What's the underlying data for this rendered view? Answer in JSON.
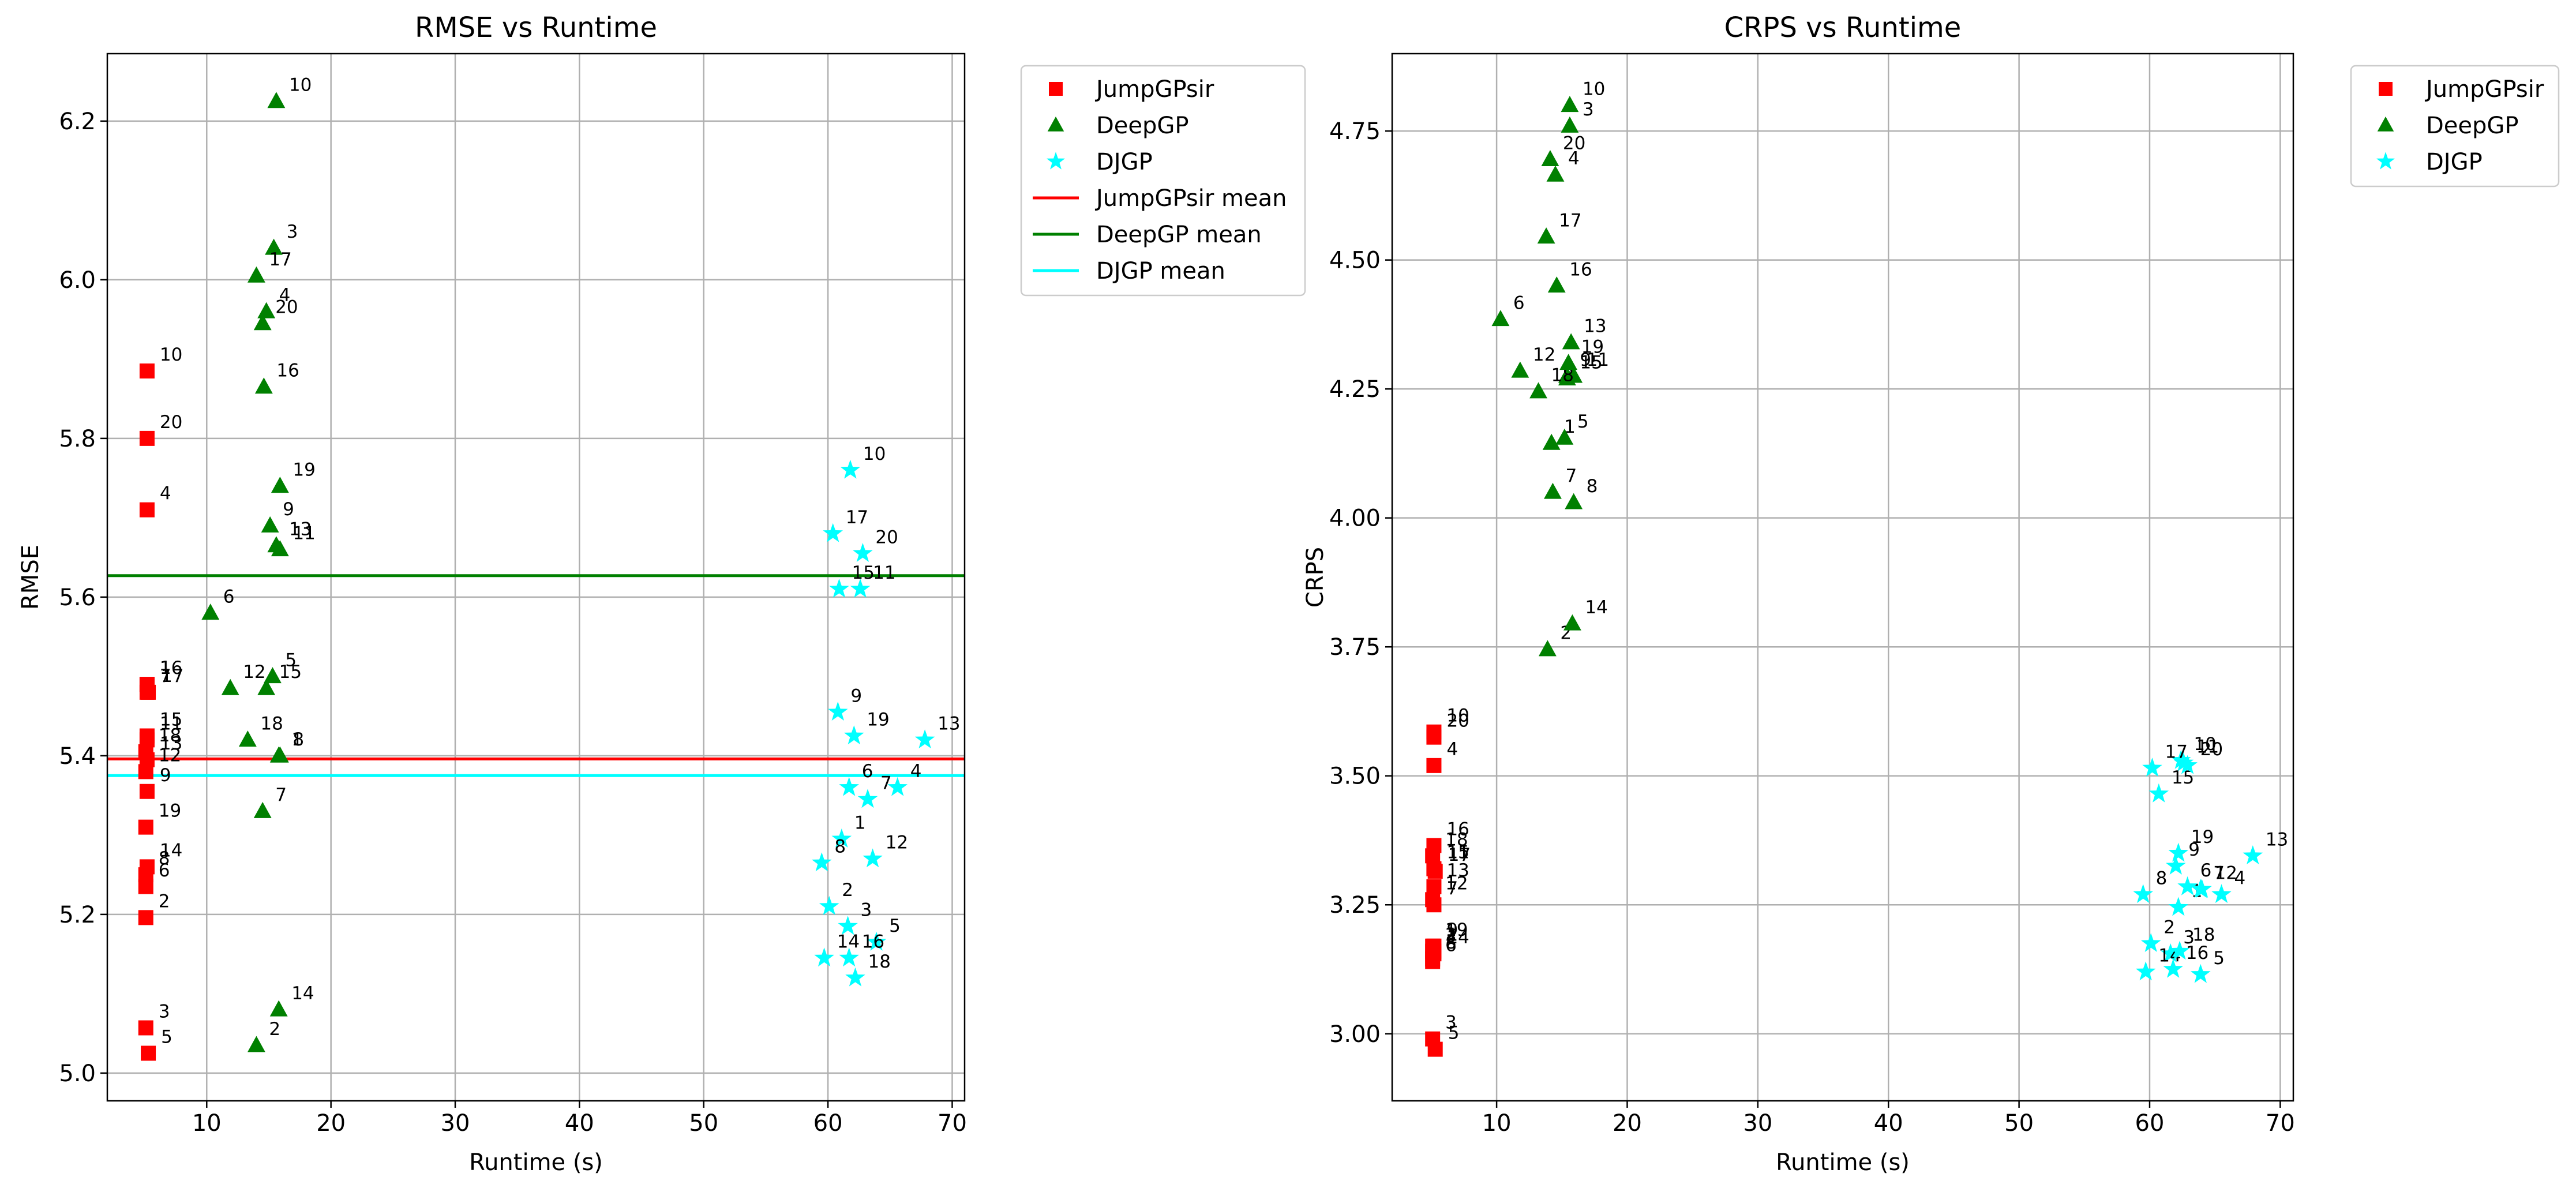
{
  "chart_data": [
    {
      "type": "scatter",
      "title": "RMSE vs Runtime",
      "xlabel": "Runtime (s)",
      "ylabel": "RMSE",
      "xlim": [
        2,
        71
      ],
      "ylim": [
        4.965,
        6.285
      ],
      "xticks": [
        10,
        20,
        30,
        40,
        50,
        60,
        70
      ],
      "yticks": [
        5.0,
        5.2,
        5.4,
        5.6,
        5.8,
        6.0,
        6.2
      ],
      "ytick_decimals": 1,
      "grid": true,
      "legend_position": "outside upper right",
      "legend": [
        "JumpGPsir",
        "DeepGP",
        "DJGP",
        "JumpGPsir mean",
        "DeepGP mean",
        "DJGP mean"
      ],
      "series": [
        {
          "name": "JumpGPsir",
          "marker": "square",
          "color": "#ff0000",
          "labels": [
            "1",
            "2",
            "3",
            "4",
            "5",
            "6",
            "7",
            "8",
            "9",
            "10",
            "11",
            "12",
            "13",
            "14",
            "15",
            "16",
            "17",
            "18",
            "19",
            "20"
          ],
          "x": [
            5.2,
            5.1,
            5.1,
            5.2,
            5.3,
            5.1,
            5.2,
            5.1,
            5.2,
            5.2,
            5.2,
            5.1,
            5.2,
            5.2,
            5.2,
            5.2,
            5.3,
            5.1,
            5.1,
            5.2
          ],
          "y": [
            5.49,
            5.196,
            5.057,
            5.71,
            5.025,
            5.235,
            5.48,
            5.25,
            5.355,
            5.885,
            5.42,
            5.38,
            5.395,
            5.26,
            5.425,
            5.49,
            5.48,
            5.405,
            5.31,
            5.8
          ]
        },
        {
          "name": "DeepGP",
          "marker": "triangle",
          "color": "#008000",
          "labels": [
            "1",
            "2",
            "3",
            "4",
            "5",
            "6",
            "7",
            "8",
            "9",
            "10",
            "11",
            "12",
            "13",
            "14",
            "15",
            "16",
            "17",
            "18",
            "19",
            "20"
          ],
          "x": [
            15.8,
            14.0,
            15.4,
            14.8,
            15.3,
            10.3,
            14.5,
            15.9,
            15.1,
            15.6,
            15.9,
            11.9,
            15.6,
            15.8,
            14.8,
            14.6,
            14.0,
            13.3,
            15.9,
            14.5
          ],
          "y": [
            5.4,
            5.035,
            6.04,
            5.96,
            5.5,
            5.58,
            5.33,
            5.4,
            5.69,
            6.225,
            5.66,
            5.485,
            5.665,
            5.08,
            5.485,
            5.865,
            6.005,
            5.42,
            5.74,
            5.945
          ]
        },
        {
          "name": "DJGP",
          "marker": "star",
          "color": "#00ffff",
          "labels": [
            "1",
            "2",
            "3",
            "4",
            "5",
            "6",
            "7",
            "8",
            "9",
            "10",
            "11",
            "12",
            "13",
            "14",
            "15",
            "16",
            "17",
            "18",
            "19",
            "20"
          ],
          "x": [
            61.1,
            60.1,
            61.6,
            65.6,
            63.9,
            61.7,
            63.2,
            59.5,
            60.8,
            61.8,
            62.6,
            63.6,
            67.8,
            59.7,
            60.9,
            61.7,
            60.4,
            62.2,
            62.1,
            62.8
          ],
          "y": [
            5.295,
            5.21,
            5.185,
            5.36,
            5.165,
            5.36,
            5.345,
            5.265,
            5.455,
            5.76,
            5.61,
            5.27,
            5.42,
            5.145,
            5.61,
            5.145,
            5.68,
            5.12,
            5.425,
            5.655
          ]
        }
      ],
      "mean_lines": [
        {
          "name": "JumpGPsir mean",
          "y": 5.396,
          "color": "#ff0000"
        },
        {
          "name": "DeepGP mean",
          "y": 5.627,
          "color": "#008000"
        },
        {
          "name": "DJGP mean",
          "y": 5.375,
          "color": "#00ffff"
        }
      ]
    },
    {
      "type": "scatter",
      "title": "CRPS vs Runtime",
      "xlabel": "Runtime (s)",
      "ylabel": "CRPS",
      "xlim": [
        2,
        71
      ],
      "ylim": [
        2.87,
        4.9
      ],
      "xticks": [
        10,
        20,
        30,
        40,
        50,
        60,
        70
      ],
      "yticks": [
        3.0,
        3.25,
        3.5,
        3.75,
        4.0,
        4.25,
        4.5,
        4.75
      ],
      "ytick_decimals": 2,
      "grid": true,
      "legend_position": "outside upper right",
      "legend": [
        "JumpGPsir",
        "DeepGP",
        "DJGP"
      ],
      "series": [
        {
          "name": "JumpGPsir",
          "marker": "square",
          "color": "#ff0000",
          "labels": [
            "1",
            "2",
            "3",
            "4",
            "5",
            "6",
            "7",
            "8",
            "9",
            "10",
            "11",
            "12",
            "13",
            "14",
            "15",
            "16",
            "17",
            "18",
            "19",
            "20"
          ],
          "x": [
            5.2,
            5.1,
            5.1,
            5.2,
            5.3,
            5.1,
            5.2,
            5.1,
            5.2,
            5.2,
            5.2,
            5.1,
            5.2,
            5.2,
            5.2,
            5.2,
            5.3,
            5.1,
            5.1,
            5.2
          ],
          "y": [
            3.16,
            3.16,
            2.99,
            3.52,
            2.97,
            3.14,
            3.25,
            3.145,
            3.17,
            3.585,
            3.32,
            3.26,
            3.285,
            3.155,
            3.32,
            3.365,
            3.315,
            3.345,
            3.17,
            3.575
          ]
        },
        {
          "name": "DeepGP",
          "marker": "triangle",
          "color": "#008000",
          "labels": [
            "1",
            "2",
            "3",
            "4",
            "5",
            "6",
            "7",
            "8",
            "9",
            "10",
            "11",
            "12",
            "13",
            "14",
            "15",
            "16",
            "17",
            "18",
            "19",
            "20"
          ],
          "x": [
            14.2,
            13.9,
            15.6,
            14.5,
            15.2,
            10.3,
            14.3,
            15.9,
            15.4,
            15.6,
            15.9,
            11.8,
            15.7,
            15.8,
            15.4,
            14.6,
            13.8,
            13.2,
            15.5,
            14.1
          ],
          "y": [
            4.145,
            3.745,
            4.76,
            4.665,
            4.155,
            4.385,
            4.05,
            4.03,
            4.275,
            4.8,
            4.275,
            4.285,
            4.34,
            3.795,
            4.27,
            4.45,
            4.545,
            4.245,
            4.3,
            4.695
          ]
        },
        {
          "name": "DJGP",
          "marker": "star",
          "color": "#00ffff",
          "labels": [
            "1",
            "2",
            "3",
            "4",
            "5",
            "6",
            "7",
            "8",
            "9",
            "10",
            "11",
            "12",
            "13",
            "14",
            "15",
            "16",
            "17",
            "18",
            "19",
            "20"
          ],
          "x": [
            62.2,
            60.1,
            61.6,
            65.5,
            63.9,
            62.9,
            63.9,
            59.5,
            62.0,
            62.4,
            62.6,
            64.0,
            67.9,
            59.7,
            60.7,
            61.8,
            60.2,
            62.3,
            62.2,
            62.9
          ],
          "y": [
            3.245,
            3.175,
            3.155,
            3.27,
            3.115,
            3.285,
            3.28,
            3.27,
            3.325,
            3.53,
            3.525,
            3.28,
            3.345,
            3.12,
            3.465,
            3.125,
            3.515,
            3.16,
            3.35,
            3.52
          ]
        }
      ],
      "mean_lines": []
    }
  ]
}
